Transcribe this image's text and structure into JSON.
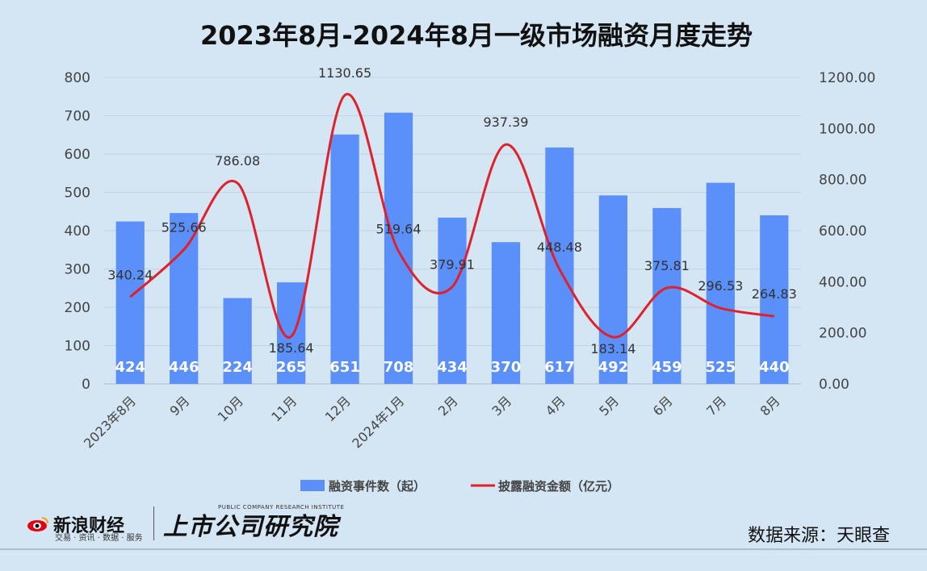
{
  "chart_data": {
    "type": "bar",
    "title": "2023年8月-2024年8月一级市场融资月度走势",
    "categories": [
      "2023年8月",
      "9月",
      "10月",
      "11月",
      "12月",
      "2024年1月",
      "2月",
      "3月",
      "4月",
      "5月",
      "6月",
      "7月",
      "8月"
    ],
    "series": [
      {
        "name": "融资事件数（起）",
        "type": "bar",
        "axis": "left",
        "color": "#5b8ff9",
        "values": [
          424,
          446,
          224,
          265,
          651,
          708,
          434,
          370,
          617,
          492,
          459,
          525,
          440
        ],
        "labels": [
          "424",
          "446",
          "224",
          "265",
          "651",
          "708",
          "434",
          "370",
          "617",
          "492",
          "459",
          "525",
          "440"
        ]
      },
      {
        "name": "披露融资金额（亿元）",
        "type": "line",
        "axis": "right",
        "color": "#e0212b",
        "values": [
          340.24,
          525.66,
          786.08,
          185.64,
          1130.65,
          519.64,
          379.91,
          937.39,
          448.48,
          183.14,
          375.81,
          296.53,
          264.83
        ],
        "labels": [
          "340.24",
          "525.66",
          "786.08",
          "185.64",
          "1130.65",
          "519.64",
          "379.91",
          "937.39",
          "448.48",
          "183.14",
          "375.81",
          "296.53",
          "264.83"
        ]
      }
    ],
    "ylim_left": [
      0,
      800
    ],
    "ylim_right": [
      0,
      1200
    ],
    "yticks_left": [
      "0",
      "100",
      "200",
      "300",
      "400",
      "500",
      "600",
      "700",
      "800"
    ],
    "yticks_right": [
      "0.00",
      "200.00",
      "400.00",
      "600.00",
      "800.00",
      "1000.00",
      "1200.00"
    ],
    "grid": true,
    "legend_position": "bottom"
  },
  "footer": {
    "sina_name": "新浪财经",
    "sina_sub": "交易 · 资讯 · 数据 · 服务",
    "ipo_name": "上市公司研究院",
    "ipo_sub": "PUBLIC COMPANY RESEARCH INSTITUTE",
    "source": "数据来源：天眼查"
  },
  "colors": {
    "background": "#d4e5f3",
    "bar": "#5b8ff9",
    "line": "#e0212b"
  }
}
